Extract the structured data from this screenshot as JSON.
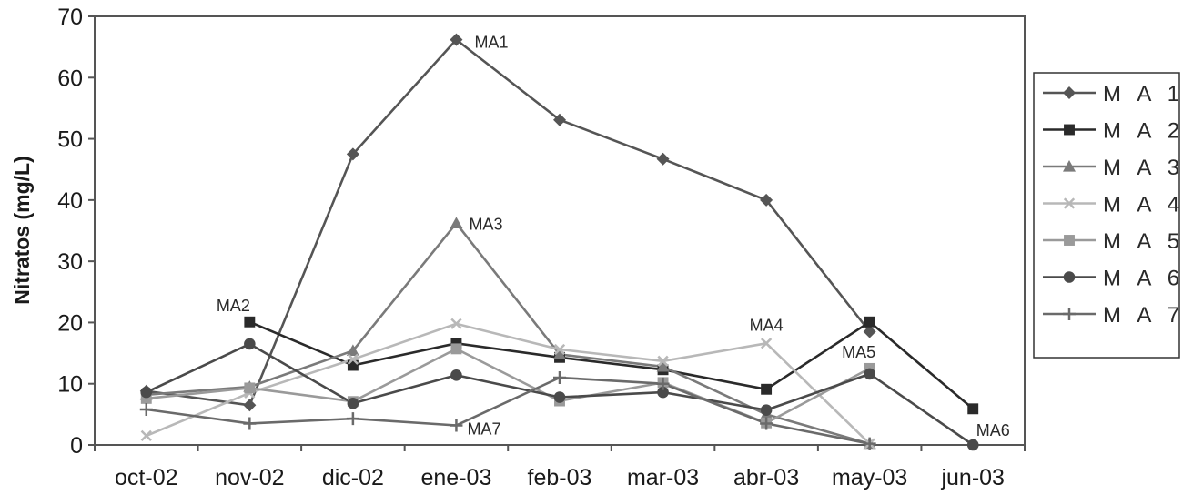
{
  "chart_data": {
    "type": "line",
    "title": "",
    "xlabel": "",
    "ylabel": "Nitratos (mg/L)",
    "ylim": [
      0,
      70
    ],
    "yticks": [
      "0",
      "10",
      "20",
      "30",
      "40",
      "50",
      "60",
      "70"
    ],
    "grid": false,
    "legend_position": "right",
    "categories": [
      "oct-02",
      "nov-02",
      "dic-02",
      "ene-03",
      "feb-03",
      "mar-03",
      "abr-03",
      "may-03",
      "jun-03"
    ],
    "series": [
      {
        "name": "M A 1",
        "color": "#555555",
        "marker": "diamond",
        "values": [
          8.8,
          6.5,
          47.5,
          66.2,
          53.1,
          46.7,
          40.0,
          18.5,
          null
        ]
      },
      {
        "name": "M A 2",
        "color": "#2a2a2a",
        "marker": "square",
        "values": [
          null,
          20.1,
          13.0,
          16.6,
          14.3,
          12.3,
          9.1,
          20.1,
          5.9
        ]
      },
      {
        "name": "M A 3",
        "color": "#7a7a7a",
        "marker": "triangle",
        "values": [
          8.2,
          9.5,
          15.4,
          36.2,
          14.8,
          12.8,
          5.0,
          0.2,
          null
        ]
      },
      {
        "name": "M A 4",
        "color": "#b8b8b8",
        "marker": "x",
        "values": [
          1.5,
          8.5,
          14.0,
          19.8,
          15.6,
          13.7,
          16.6,
          0.2,
          null
        ]
      },
      {
        "name": "M A 5",
        "color": "#9a9a9a",
        "marker": "square",
        "values": [
          7.6,
          9.3,
          7.1,
          15.7,
          7.2,
          10.2,
          3.6,
          12.5,
          null
        ]
      },
      {
        "name": "M A 6",
        "color": "#4a4a4a",
        "marker": "circle",
        "values": [
          8.6,
          16.5,
          6.8,
          11.4,
          7.8,
          8.6,
          5.7,
          11.6,
          0.0
        ]
      },
      {
        "name": "M A 7",
        "color": "#6a6a6a",
        "marker": "plus",
        "values": [
          5.8,
          3.5,
          4.3,
          3.2,
          11.0,
          10.0,
          3.5,
          0.2,
          null
        ]
      }
    ],
    "annotations": [
      {
        "text": "MA1",
        "category": "ene-03",
        "value": 66.2
      },
      {
        "text": "MA2",
        "category": "nov-02",
        "value": 20.1
      },
      {
        "text": "MA3",
        "category": "ene-03",
        "value": 36.2
      },
      {
        "text": "MA4",
        "category": "abr-03",
        "value": 16.6
      },
      {
        "text": "MA5",
        "category": "may-03",
        "value": 12.5
      },
      {
        "text": "MA6",
        "category": "jun-03",
        "value": 0.0
      },
      {
        "text": "MA7",
        "category": "ene-03",
        "value": 3.2
      }
    ]
  }
}
